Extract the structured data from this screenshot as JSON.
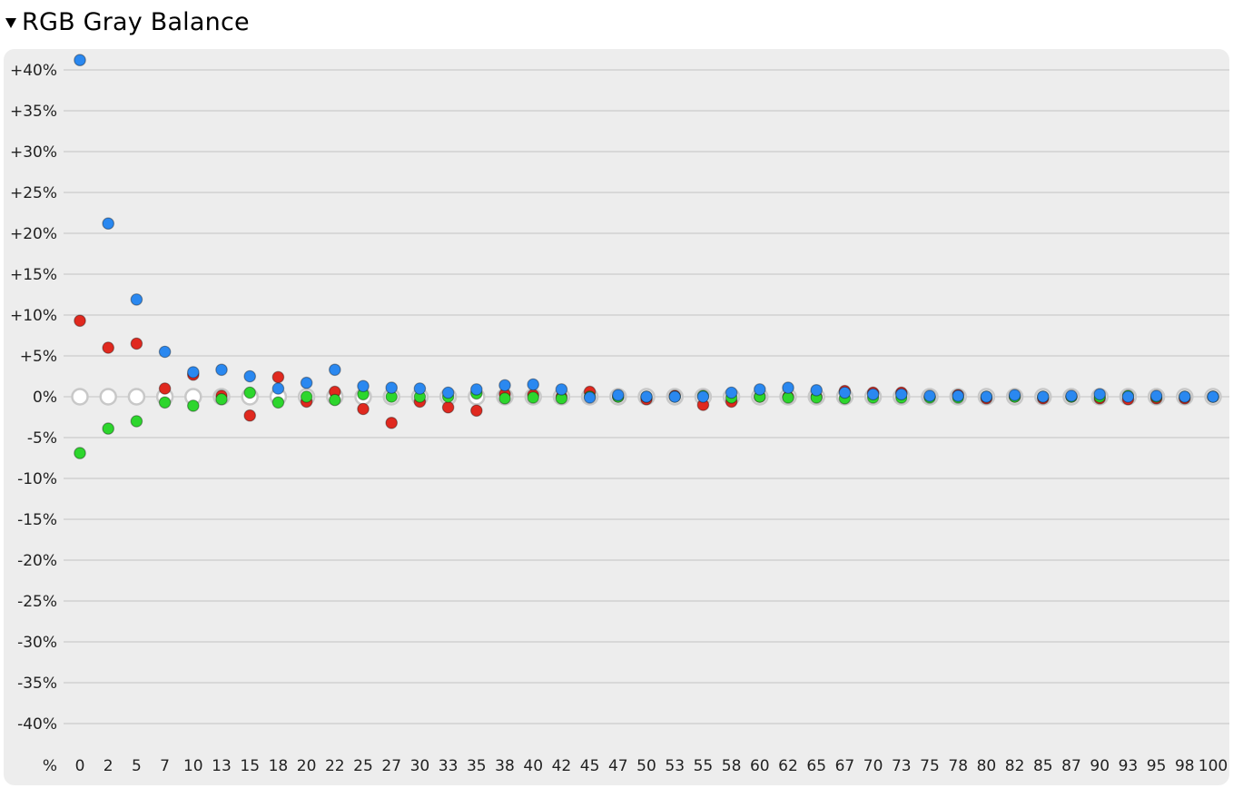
{
  "header": {
    "title": "RGB Gray Balance",
    "toggle_icon": "triangle-down-icon"
  },
  "chart_data": {
    "type": "scatter",
    "title": "RGB Gray Balance",
    "x_axis_unit_label": "%",
    "categories": [
      "0",
      "2",
      "5",
      "7",
      "10",
      "13",
      "15",
      "18",
      "20",
      "22",
      "25",
      "27",
      "30",
      "33",
      "35",
      "38",
      "40",
      "42",
      "45",
      "47",
      "50",
      "53",
      "55",
      "58",
      "60",
      "62",
      "65",
      "67",
      "70",
      "73",
      "75",
      "78",
      "80",
      "82",
      "85",
      "87",
      "90",
      "93",
      "95",
      "98",
      "100"
    ],
    "y_ticks": [
      {
        "value": 40,
        "label": "+40%"
      },
      {
        "value": 35,
        "label": "+35%"
      },
      {
        "value": 30,
        "label": "+30%"
      },
      {
        "value": 25,
        "label": "+25%"
      },
      {
        "value": 20,
        "label": "+20%"
      },
      {
        "value": 15,
        "label": "+15%"
      },
      {
        "value": 10,
        "label": "+10%"
      },
      {
        "value": 5,
        "label": "+5%"
      },
      {
        "value": 0,
        "label": "0%"
      },
      {
        "value": -5,
        "label": "-5%"
      },
      {
        "value": -10,
        "label": "-10%"
      },
      {
        "value": -15,
        "label": "-15%"
      },
      {
        "value": -20,
        "label": "-20%"
      },
      {
        "value": -25,
        "label": "-25%"
      },
      {
        "value": -30,
        "label": "-30%"
      },
      {
        "value": -35,
        "label": "-35%"
      },
      {
        "value": -40,
        "label": "-40%"
      }
    ],
    "ylim": [
      -40,
      40
    ],
    "grid": true,
    "reference_color": "#c8c8c8",
    "series": [
      {
        "color": "#e0291f",
        "values": [
          9.3,
          6.0,
          6.5,
          1.0,
          2.7,
          0.1,
          -2.3,
          2.4,
          -0.6,
          0.6,
          -1.5,
          -3.2,
          -0.6,
          -1.3,
          -1.7,
          0.3,
          0.2,
          0.0,
          0.6,
          0.0,
          -0.3,
          0.1,
          -1.0,
          -0.6,
          0.0,
          0.0,
          0.0,
          0.7,
          0.5,
          0.5,
          0.0,
          0.2,
          -0.2,
          0.0,
          -0.2,
          0.0,
          -0.2,
          -0.3,
          -0.2,
          -0.2,
          0.0
        ]
      },
      {
        "color": "#2dd62d",
        "values": [
          -6.9,
          -3.9,
          -3.0,
          -0.7,
          -1.1,
          -0.3,
          0.5,
          -0.7,
          0.0,
          -0.4,
          0.3,
          0.0,
          0.0,
          0.0,
          0.4,
          -0.2,
          -0.1,
          -0.2,
          0.0,
          0.0,
          0.0,
          0.0,
          0.1,
          -0.1,
          0.0,
          -0.1,
          -0.1,
          -0.2,
          -0.1,
          -0.1,
          -0.1,
          -0.1,
          0.0,
          0.0,
          0.0,
          0.0,
          0.0,
          0.1,
          0.0,
          0.0,
          0.0
        ]
      },
      {
        "color": "#2a88f0",
        "values": [
          41.2,
          21.2,
          11.9,
          5.5,
          3.0,
          3.3,
          2.5,
          1.0,
          1.7,
          3.3,
          1.3,
          1.1,
          1.0,
          0.5,
          0.9,
          1.4,
          1.5,
          0.9,
          -0.1,
          0.2,
          0.0,
          0.0,
          0.0,
          0.5,
          0.9,
          1.1,
          0.8,
          0.5,
          0.3,
          0.3,
          0.1,
          0.1,
          0.0,
          0.2,
          0.0,
          0.1,
          0.3,
          0.0,
          0.1,
          0.0,
          0.0
        ]
      }
    ]
  }
}
